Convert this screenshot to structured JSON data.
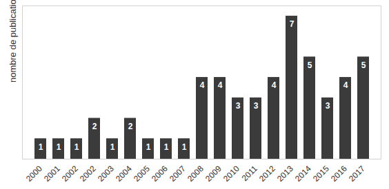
{
  "chart_data": {
    "type": "bar",
    "y_label": "nombre de publication",
    "categories": [
      "2000",
      "2001",
      "2002",
      "2002",
      "2003",
      "2004",
      "2005",
      "2006",
      "2007",
      "2008",
      "2009",
      "2010",
      "2011",
      "2012",
      "2013",
      "2014",
      "2015",
      "2016",
      "2017"
    ],
    "values": [
      1,
      1,
      1,
      2,
      1,
      2,
      1,
      1,
      1,
      4,
      4,
      3,
      3,
      4,
      7,
      5,
      3,
      4,
      5
    ],
    "color": "#3b3b3b",
    "ylim": [
      0,
      7.5
    ],
    "grid": false,
    "data_labels": true,
    "tick_labels": "x"
  }
}
